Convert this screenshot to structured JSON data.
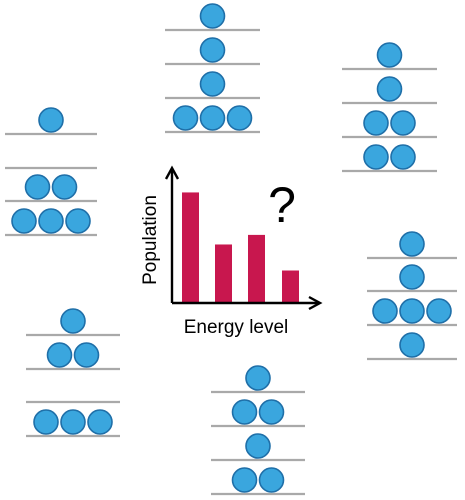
{
  "colors": {
    "particle": "#3aa6de",
    "particle_outline": "#1f6fa8",
    "level_line": "#a9a9a9",
    "bar": "#c8174e",
    "axis": "#000000"
  },
  "icons": {
    "question": "question-mark-icon"
  },
  "question_mark": "?",
  "chart_data": {
    "type": "bar",
    "title": "",
    "xlabel": "Energy level",
    "ylabel": "Population",
    "categories": [
      "",
      "",
      "",
      ""
    ],
    "values": [
      4,
      2.1,
      2.45,
      1.15
    ],
    "ylim": [
      0,
      4.6
    ],
    "grid": false,
    "legend": "none"
  },
  "configurations": [
    {
      "name": "configuration-top-center",
      "levels": [
        1,
        1,
        1,
        3
      ]
    },
    {
      "name": "configuration-top-right",
      "levels": [
        1,
        1,
        2,
        2
      ]
    },
    {
      "name": "configuration-left",
      "levels": [
        1,
        0,
        2,
        3
      ]
    },
    {
      "name": "configuration-right",
      "levels": [
        1,
        1,
        3,
        1
      ]
    },
    {
      "name": "configuration-bottom-left",
      "levels": [
        1,
        2,
        0,
        3
      ]
    },
    {
      "name": "configuration-bottom-center",
      "levels": [
        1,
        2,
        1,
        2
      ]
    }
  ]
}
